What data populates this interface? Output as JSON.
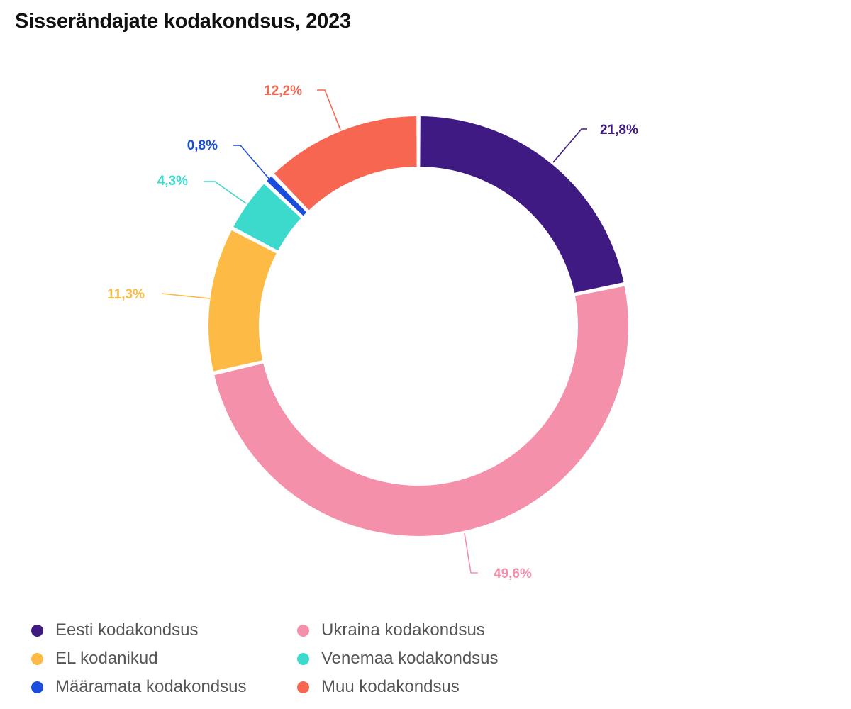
{
  "title": "Sisserändajate kodakondsus, 2023",
  "chart_data": {
    "type": "pie",
    "variant": "donut",
    "unit": "%",
    "categories": [
      "Eesti kodakondsus",
      "Ukraina kodakondsus",
      "EL kodanikud",
      "Venemaa kodakondsus",
      "Määramata kodakondsus",
      "Muu kodakondsus"
    ],
    "values": [
      21.8,
      49.6,
      11.3,
      4.3,
      0.8,
      12.2
    ],
    "labels": [
      "21,8%",
      "49,6%",
      "11,3%",
      "4,3%",
      "0,8%",
      "12,2%"
    ],
    "colors": [
      "#3f1a82",
      "#f590aa",
      "#fdbb45",
      "#3cd9cd",
      "#1a4ddb",
      "#f66650"
    ],
    "legend_position": "bottom",
    "legend": [
      {
        "label": "Eesti kodakondsus",
        "color": "#3f1a82"
      },
      {
        "label": "Ukraina kodakondsus",
        "color": "#f590aa"
      },
      {
        "label": "EL kodanikud",
        "color": "#fdbb45"
      },
      {
        "label": "Venemaa kodakondsus",
        "color": "#3cd9cd"
      },
      {
        "label": "Määramata kodakondsus",
        "color": "#1a4ddb"
      },
      {
        "label": "Muu kodakondsus",
        "color": "#f66650"
      }
    ]
  }
}
